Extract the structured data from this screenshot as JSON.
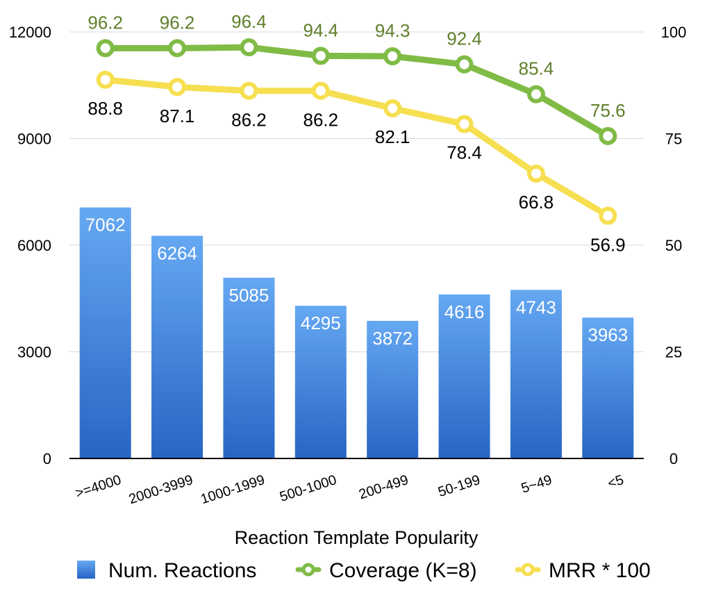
{
  "chart_data": {
    "type": "bar+line",
    "xlabel": "Reaction Template Popularity",
    "categories": [
      ">=4000",
      "2000-3999",
      "1000-1999",
      "500-1000",
      "200-499",
      "50-199",
      "5~49",
      "<5"
    ],
    "left_axis": {
      "min": 0,
      "max": 12000,
      "ticks": [
        0,
        3000,
        6000,
        9000,
        12000
      ]
    },
    "right_axis": {
      "min": 0,
      "max": 100,
      "ticks": [
        0,
        25,
        50,
        75,
        100
      ]
    },
    "series": [
      {
        "name": "Num. Reactions",
        "kind": "bar",
        "axis": "left",
        "values": [
          7062,
          6264,
          5085,
          4295,
          3872,
          4616,
          4743,
          3963
        ],
        "labels": [
          "7062",
          "6264",
          "5085",
          "4295",
          "3872",
          "4616",
          "4743",
          "3963"
        ]
      },
      {
        "name": "Coverage (K=8)",
        "kind": "line",
        "axis": "right",
        "values": [
          96.2,
          96.2,
          96.4,
          94.4,
          94.3,
          92.4,
          85.4,
          75.6
        ],
        "labels": [
          "96.2",
          "96.2",
          "96.4",
          "94.4",
          "94.3",
          "92.4",
          "85.4",
          "75.6"
        ]
      },
      {
        "name": "MRR * 100",
        "kind": "line",
        "axis": "right",
        "values": [
          88.8,
          87.1,
          86.2,
          86.2,
          82.1,
          78.4,
          66.8,
          56.9
        ],
        "labels": [
          "88.8",
          "87.1",
          "86.2",
          "86.2",
          "82.1",
          "78.4",
          "66.8",
          "56.9"
        ]
      }
    ],
    "legend": "bottom",
    "grid": true
  },
  "colors": {
    "bar_top": "#65a8f2",
    "bar_bottom": "#2765c5",
    "coverage": "#80bb46",
    "coverage_label": "#5f7f2a",
    "mrr": "#f6df50",
    "grid": "#d9d9d9",
    "axis": "#000000"
  }
}
